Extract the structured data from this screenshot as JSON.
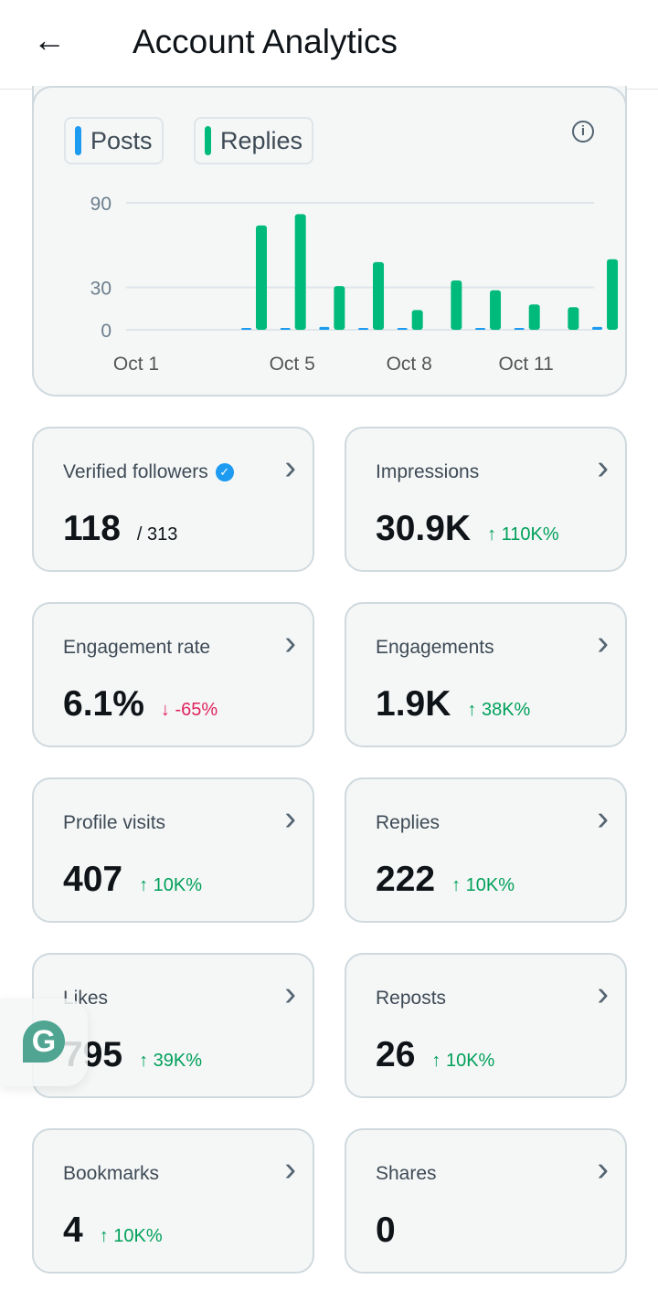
{
  "header": {
    "title": "Account Analytics"
  },
  "chart_data": {
    "type": "bar",
    "categories": [
      "Oct 1",
      "Oct 2",
      "Oct 3",
      "Oct 4",
      "Oct 5",
      "Oct 6",
      "Oct 7",
      "Oct 8",
      "Oct 9",
      "Oct 10",
      "Oct 11",
      "Oct 12",
      "Oct 13"
    ],
    "x_tick_labels": [
      "Oct 1",
      "Oct 5",
      "Oct 8",
      "Oct 11"
    ],
    "y_ticks": [
      0,
      30,
      90
    ],
    "ylim": [
      0,
      90
    ],
    "series": [
      {
        "name": "Posts",
        "color": "#1d9bf0",
        "values": [
          0,
          0,
          0,
          1,
          1,
          2,
          1,
          1,
          0,
          1,
          1,
          0,
          2
        ]
      },
      {
        "name": "Replies",
        "color": "#00ba7c",
        "values": [
          0,
          0,
          0,
          74,
          82,
          31,
          48,
          14,
          35,
          28,
          18,
          16,
          50
        ]
      }
    ],
    "legend": "top-left"
  },
  "cards": [
    {
      "label": "Verified followers",
      "value": "118",
      "sub": "/ 313",
      "verified": true
    },
    {
      "label": "Impressions",
      "value": "30.9K",
      "change": "↑ 110K%",
      "dir": "up"
    },
    {
      "label": "Engagement rate",
      "value": "6.1%",
      "change": "↓ -65%",
      "dir": "down"
    },
    {
      "label": "Engagements",
      "value": "1.9K",
      "change": "↑ 38K%",
      "dir": "up"
    },
    {
      "label": "Profile visits",
      "value": "407",
      "change": "↑ 10K%",
      "dir": "up"
    },
    {
      "label": "Replies",
      "value": "222",
      "change": "↑ 10K%",
      "dir": "up"
    },
    {
      "label": "Likes",
      "value": "795",
      "change": "↑ 39K%",
      "dir": "up"
    },
    {
      "label": "Reposts",
      "value": "26",
      "change": "↑ 10K%",
      "dir": "up"
    },
    {
      "label": "Bookmarks",
      "value": "4",
      "change": "↑ 10K%",
      "dir": "up"
    },
    {
      "label": "Shares",
      "value": "0",
      "change": "",
      "dir": "up"
    }
  ]
}
